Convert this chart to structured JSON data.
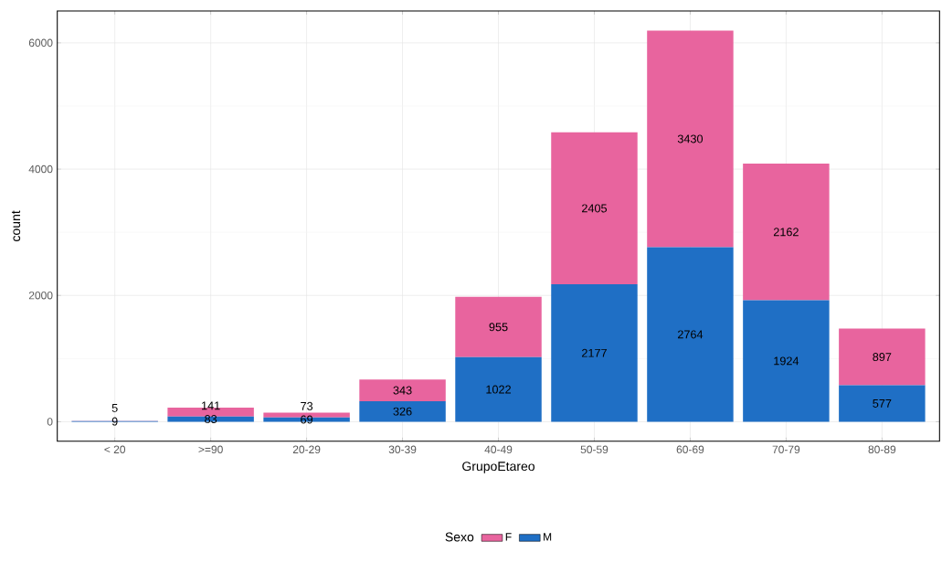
{
  "chart_data": {
    "type": "bar",
    "stacked": true,
    "xlabel": "GrupoEtareo",
    "ylabel": "count",
    "legend_title": "Sexo",
    "categories": [
      "< 20",
      ">=90",
      "20-29",
      "30-39",
      "40-49",
      "50-59",
      "60-69",
      "70-79",
      "80-89"
    ],
    "series": [
      {
        "name": "M",
        "color": "#1f6fc5",
        "values": [
          9,
          83,
          69,
          326,
          1022,
          2177,
          2764,
          1924,
          577
        ]
      },
      {
        "name": "F",
        "color": "#e8649e",
        "values": [
          5,
          141,
          73,
          343,
          955,
          2405,
          3430,
          2162,
          897
        ]
      }
    ],
    "ylim": [
      -310,
      6505
    ],
    "yticks": [
      0,
      2000,
      4000,
      6000
    ],
    "grid": true,
    "legend": "bottom",
    "data_labels": true
  }
}
